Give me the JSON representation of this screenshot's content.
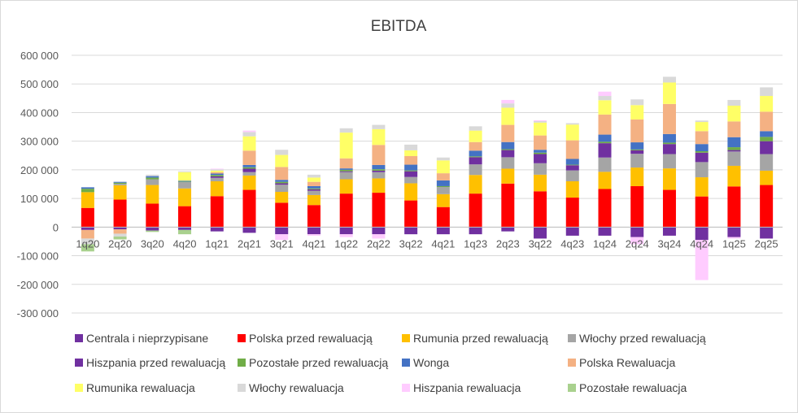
{
  "chart_data": {
    "type": "bar",
    "stacked": true,
    "title": "EBITDA",
    "xlabel": "",
    "ylabel": "",
    "ylim": [
      -300000,
      600000
    ],
    "yticks": [
      600000,
      500000,
      400000,
      300000,
      200000,
      100000,
      0,
      -100000,
      -200000,
      -300000
    ],
    "ytick_labels": [
      "600 000",
      "500 000",
      "400 000",
      "300 000",
      "200 000",
      "100 000",
      "0",
      "-100 000",
      "-200 000",
      "-300 000"
    ],
    "grid": true,
    "legend_position": "bottom",
    "categories": [
      "1q20",
      "2q20",
      "3q20",
      "4q20",
      "1q21",
      "2q21",
      "3q21",
      "4q21",
      "1q22",
      "2q22",
      "3q22",
      "4q21",
      "1q23",
      "2q23",
      "3q22",
      "4q23",
      "1q24",
      "2q24",
      "3q24",
      "4q24",
      "1q25",
      "2q25"
    ],
    "series": [
      {
        "name": "Centrala i nieprzypisane",
        "color": "#7030a0",
        "values": [
          -10000,
          -8000,
          -12000,
          -10000,
          -15000,
          -20000,
          -25000,
          -25000,
          -25000,
          -25000,
          -25000,
          -25000,
          -25000,
          -15000,
          -40000,
          -30000,
          -30000,
          -35000,
          -30000,
          -45000,
          -35000,
          -40000
        ]
      },
      {
        "name": "Polska przed rewaluacją",
        "color": "#ff0000",
        "values": [
          67000,
          96000,
          82000,
          73000,
          108000,
          130000,
          85000,
          77000,
          117000,
          120000,
          93000,
          70000,
          117000,
          152000,
          125000,
          103000,
          133000,
          143000,
          130000,
          107000,
          142000,
          147000
        ]
      },
      {
        "name": "Rumunia przed rewaluacją",
        "color": "#ffc000",
        "values": [
          55000,
          50000,
          65000,
          62000,
          52000,
          50000,
          38000,
          35000,
          50000,
          50000,
          60000,
          45000,
          65000,
          52000,
          58000,
          57000,
          60000,
          65000,
          75000,
          67000,
          72000,
          50000
        ]
      },
      {
        "name": "Włochy przed rewaluacją",
        "color": "#a5a5a5",
        "values": [
          0,
          5000,
          20000,
          22000,
          12000,
          12000,
          25000,
          15000,
          25000,
          22000,
          22000,
          25000,
          37000,
          40000,
          40000,
          38000,
          50000,
          48000,
          50000,
          53000,
          50000,
          58000
        ]
      },
      {
        "name": "Hiszpania przed rewaluacją",
        "color": "#7030a0",
        "values": [
          0,
          0,
          0,
          0,
          5000,
          12000,
          5000,
          5000,
          3000,
          5000,
          20000,
          0,
          25000,
          25000,
          32000,
          18000,
          50000,
          12000,
          35000,
          33000,
          5000,
          45000
        ]
      },
      {
        "name": "Pozostałe przed rewaluacją",
        "color": "#70ad47",
        "values": [
          12000,
          4000,
          6000,
          2000,
          5000,
          5000,
          5000,
          3000,
          5000,
          5000,
          3000,
          3000,
          3000,
          3000,
          5000,
          2000,
          5000,
          3000,
          5000,
          5000,
          10000,
          15000
        ]
      },
      {
        "name": "Wonga",
        "color": "#4472c4",
        "values": [
          5000,
          3000,
          5000,
          3000,
          5000,
          8000,
          7000,
          8000,
          5000,
          15000,
          20000,
          20000,
          20000,
          25000,
          10000,
          20000,
          25000,
          25000,
          30000,
          25000,
          35000,
          20000
        ]
      },
      {
        "name": "Polska Rewaluacja",
        "color": "#f4b183",
        "values": [
          -30000,
          -15000,
          0,
          0,
          5000,
          50000,
          45000,
          15000,
          35000,
          70000,
          30000,
          25000,
          30000,
          60000,
          50000,
          65000,
          70000,
          80000,
          105000,
          45000,
          55000,
          68000
        ]
      },
      {
        "name": "Rumunika rewaluacja",
        "color": "#ffff66",
        "values": [
          0,
          0,
          0,
          30000,
          5000,
          50000,
          42000,
          15000,
          90000,
          55000,
          20000,
          45000,
          40000,
          60000,
          45000,
          55000,
          50000,
          50000,
          75000,
          32000,
          55000,
          55000
        ]
      },
      {
        "name": "Włochy rewaluacja",
        "color": "#d9d9d9",
        "values": [
          -20000,
          -10000,
          5000,
          3000,
          5000,
          15000,
          18000,
          10000,
          15000,
          15000,
          20000,
          10000,
          15000,
          15000,
          5000,
          5000,
          15000,
          20000,
          20000,
          5000,
          20000,
          30000
        ]
      },
      {
        "name": "Hiszpania rewaluacja",
        "color": "#ffccff",
        "values": [
          0,
          0,
          0,
          0,
          2000,
          5000,
          -20000,
          -5000,
          -10000,
          -15000,
          0,
          0,
          0,
          12000,
          3000,
          0,
          15000,
          -25000,
          0,
          -140000,
          -5000,
          0
        ]
      },
      {
        "name": "Pozostałe rewaluacja",
        "color": "#a9d18e",
        "values": [
          -25000,
          -10000,
          -5000,
          -15000,
          0,
          0,
          0,
          0,
          0,
          0,
          0,
          0,
          0,
          0,
          0,
          0,
          0,
          0,
          0,
          0,
          0,
          0
        ]
      }
    ]
  }
}
